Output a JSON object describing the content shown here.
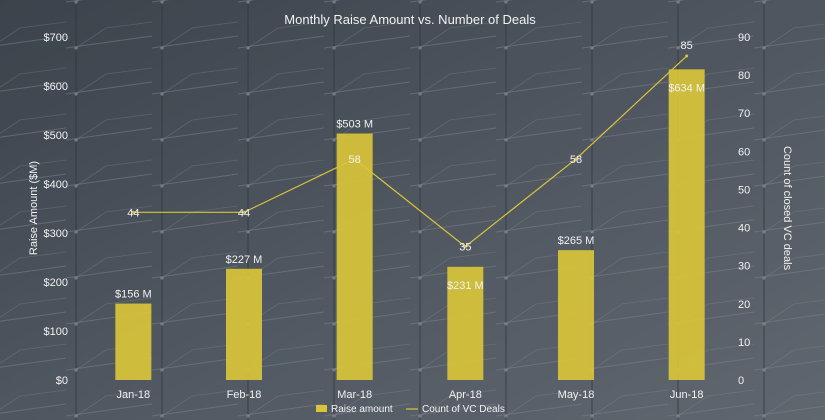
{
  "chart_data": {
    "type": "bar",
    "title": "Monthly Raise Amount vs. Number of Deals",
    "categories": [
      "Jan-18",
      "Feb-18",
      "Mar-18",
      "Apr-18",
      "May-18",
      "Jun-18"
    ],
    "series": [
      {
        "name": "Raise amount",
        "type": "bar",
        "axis": "left",
        "values": [
          156,
          227,
          503,
          231,
          265,
          634
        ],
        "labels": [
          "$156 M",
          "$227 M",
          "$503 M",
          "$231 M",
          "$265 M",
          "$634 M"
        ]
      },
      {
        "name": "Count of VC Deals",
        "type": "line",
        "axis": "right",
        "values": [
          44,
          44,
          58,
          35,
          58,
          85
        ],
        "labels": [
          "44",
          "44",
          "58",
          "35",
          "58",
          "85"
        ]
      }
    ],
    "ylabel": "Raise Amount ($M)",
    "y2label": "Count of closed VC deals",
    "ylim": [
      0,
      700
    ],
    "y2lim": [
      0,
      90
    ],
    "yticks": [
      "$0",
      "$100",
      "$200",
      "$300",
      "$400",
      "$500",
      "$600",
      "$700"
    ],
    "y2ticks": [
      "0",
      "10",
      "20",
      "30",
      "40",
      "50",
      "60",
      "70",
      "80",
      "90"
    ],
    "legend_position": "bottom",
    "grid": false,
    "colors": {
      "bar": "#d9c43a",
      "line": "#d9c43a",
      "text": "#f2f2f2"
    }
  }
}
